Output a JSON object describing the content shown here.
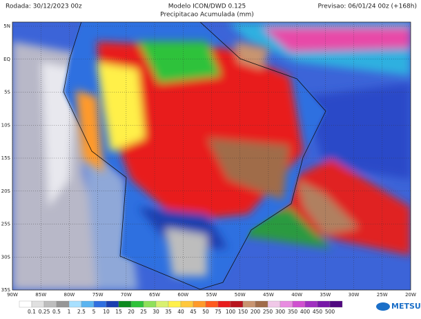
{
  "header": {
    "run": "Rodada: 30/12/2023 00z",
    "model": "Modelo ICON/DWD 0.125",
    "product": "Precipitacao Acumulada (mm)",
    "forecast": "Previsao: 06/01/24 00z (+168h)"
  },
  "latitude_labels": [
    "5N",
    "EQ",
    "5S",
    "10S",
    "15S",
    "20S",
    "25S",
    "30S",
    "35S"
  ],
  "longitude_labels": [
    "90W",
    "85W",
    "80W",
    "75W",
    "70W",
    "65W",
    "60W",
    "55W",
    "50W",
    "45W",
    "40W",
    "35W",
    "30W",
    "25W",
    "20W"
  ],
  "colorbar": {
    "labels": [
      "0.1",
      "0.25",
      "0.5",
      "1",
      "2.5",
      "5",
      "10",
      "15",
      "20",
      "25",
      "30",
      "35",
      "40",
      "45",
      "50",
      "75",
      "100",
      "150",
      "200",
      "250",
      "300",
      "350",
      "400",
      "450",
      "500"
    ],
    "colors": [
      "#ffffff",
      "#e0e0e0",
      "#bdbdbd",
      "#969696",
      "#a8e0ff",
      "#5ab4f0",
      "#2f6fe0",
      "#1b3fb0",
      "#0c8a1e",
      "#2fc23a",
      "#8ee05a",
      "#d8f070",
      "#fff04a",
      "#ffc83c",
      "#ff9a2a",
      "#ff5a1e",
      "#e81c1c",
      "#b8141e",
      "#c89470",
      "#a06c4a",
      "#f0c8e8",
      "#e88ce0",
      "#d050d0",
      "#a030c0",
      "#7818a8",
      "#500880"
    ]
  },
  "logo": "METSUL"
}
